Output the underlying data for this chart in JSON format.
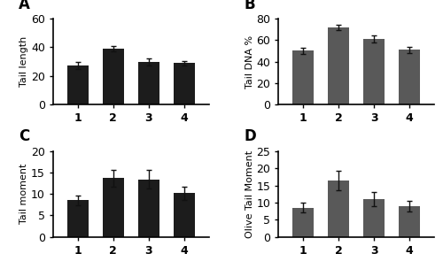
{
  "panel_A": {
    "label": "A",
    "ylabel": "Tail length",
    "values": [
      27,
      39,
      30,
      29
    ],
    "errors": [
      2.5,
      2.0,
      2.5,
      1.5
    ],
    "ylim": [
      0,
      60
    ],
    "yticks": [
      0,
      20,
      40,
      60
    ]
  },
  "panel_B": {
    "label": "B",
    "ylabel": "Tail DNA %",
    "values": [
      50,
      72,
      61,
      51
    ],
    "errors": [
      3.0,
      2.5,
      3.5,
      3.0
    ],
    "ylim": [
      0,
      80
    ],
    "yticks": [
      0,
      20,
      40,
      60,
      80
    ]
  },
  "panel_C": {
    "label": "C",
    "ylabel": "Tail moment",
    "values": [
      8.5,
      13.7,
      13.4,
      10.2
    ],
    "errors": [
      1.2,
      2.0,
      2.2,
      1.5
    ],
    "ylim": [
      0,
      20
    ],
    "yticks": [
      0,
      5,
      10,
      15,
      20
    ]
  },
  "panel_D": {
    "label": "D",
    "ylabel": "Olive Tail Moment",
    "values": [
      8.5,
      16.5,
      11.0,
      9.0
    ],
    "errors": [
      1.5,
      2.8,
      2.0,
      1.5
    ],
    "ylim": [
      0,
      25
    ],
    "yticks": [
      0,
      5,
      10,
      15,
      20,
      25
    ]
  },
  "categories": [
    "1",
    "2",
    "3",
    "4"
  ],
  "bar_color_dark": "#1c1c1c",
  "bar_color_gray": "#595959",
  "ecolor": "#111111",
  "capsize": 2,
  "bar_width": 0.6,
  "background_color": "#ffffff",
  "ylabel_fontsize": 8,
  "tick_fontsize": 9,
  "panel_label_fontsize": 12
}
